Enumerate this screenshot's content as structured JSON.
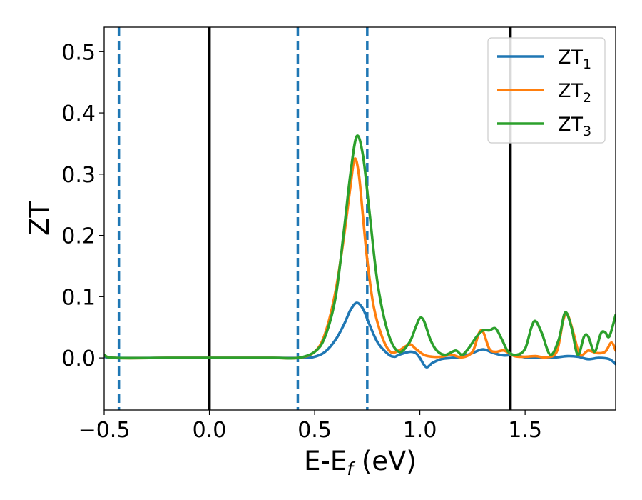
{
  "chart_data": {
    "type": "line",
    "xlabel_main": "E-E",
    "xlabel_sub": "f",
    "xlabel_tail": " (eV)",
    "ylabel": "ZT",
    "xlim": [
      -0.5,
      1.93
    ],
    "ylim": [
      -0.085,
      0.54
    ],
    "xticks": [
      -0.5,
      0.0,
      0.5,
      1.0,
      1.5
    ],
    "xtick_labels": [
      "−0.5",
      "0.0",
      "0.5",
      "1.0",
      "1.5"
    ],
    "yticks": [
      0.0,
      0.1,
      0.2,
      0.3,
      0.4,
      0.5
    ],
    "ytick_labels": [
      "0.0",
      "0.1",
      "0.2",
      "0.3",
      "0.4",
      "0.5"
    ],
    "legend_position": "top-right",
    "grid": false,
    "vlines": [
      {
        "x": -0.43,
        "style": "dashed",
        "color": "#1f77b4"
      },
      {
        "x": 0.0,
        "style": "solid",
        "color": "#000000"
      },
      {
        "x": 0.42,
        "style": "dashed",
        "color": "#1f77b4"
      },
      {
        "x": 0.75,
        "style": "dashed",
        "color": "#1f77b4"
      },
      {
        "x": 1.43,
        "style": "solid",
        "color": "#000000"
      }
    ],
    "series": [
      {
        "name": "ZT",
        "sub": "1",
        "color": "#1f77b4",
        "x": [
          -0.5,
          -0.45,
          -0.2,
          0.0,
          0.3,
          0.45,
          0.5,
          0.55,
          0.6,
          0.64,
          0.67,
          0.7,
          0.73,
          0.76,
          0.8,
          0.85,
          0.88,
          0.9,
          0.95,
          0.98,
          1.0,
          1.03,
          1.06,
          1.1,
          1.15,
          1.2,
          1.25,
          1.3,
          1.35,
          1.4,
          1.45,
          1.5,
          1.55,
          1.6,
          1.65,
          1.7,
          1.75,
          1.8,
          1.85,
          1.9,
          1.93
        ],
        "y": [
          0.002,
          0.0,
          0.0,
          0.0,
          0.0,
          0.0,
          0.002,
          0.01,
          0.03,
          0.055,
          0.078,
          0.09,
          0.08,
          0.055,
          0.025,
          0.006,
          0.002,
          0.005,
          0.01,
          0.008,
          0.0,
          -0.015,
          -0.008,
          -0.002,
          0.0,
          0.002,
          0.008,
          0.014,
          0.008,
          0.004,
          0.005,
          0.001,
          0.0,
          0.0,
          0.001,
          0.003,
          0.002,
          -0.002,
          0.0,
          -0.002,
          -0.01
        ]
      },
      {
        "name": "ZT",
        "sub": "2",
        "color": "#ff7f0e",
        "x": [
          -0.5,
          -0.45,
          -0.2,
          0.0,
          0.3,
          0.42,
          0.5,
          0.55,
          0.6,
          0.64,
          0.67,
          0.69,
          0.71,
          0.73,
          0.75,
          0.78,
          0.82,
          0.86,
          0.9,
          0.95,
          0.98,
          1.02,
          1.06,
          1.1,
          1.15,
          1.2,
          1.25,
          1.28,
          1.3,
          1.33,
          1.36,
          1.4,
          1.45,
          1.5,
          1.55,
          1.6,
          1.65,
          1.68,
          1.7,
          1.73,
          1.76,
          1.8,
          1.84,
          1.88,
          1.91,
          1.93
        ],
        "y": [
          0.005,
          0.0,
          0.0,
          0.0,
          0.0,
          0.0,
          0.01,
          0.04,
          0.11,
          0.2,
          0.28,
          0.325,
          0.3,
          0.23,
          0.16,
          0.085,
          0.035,
          0.01,
          0.012,
          0.022,
          0.015,
          0.005,
          0.002,
          0.002,
          0.005,
          0.001,
          0.01,
          0.04,
          0.043,
          0.015,
          0.01,
          0.012,
          0.003,
          0.002,
          0.003,
          0.001,
          0.01,
          0.06,
          0.072,
          0.04,
          0.005,
          0.012,
          0.008,
          0.01,
          0.025,
          0.012
        ]
      },
      {
        "name": "ZT",
        "sub": "3",
        "color": "#2ca02c",
        "x": [
          -0.5,
          -0.45,
          -0.2,
          0.0,
          0.3,
          0.42,
          0.5,
          0.55,
          0.6,
          0.64,
          0.67,
          0.7,
          0.73,
          0.76,
          0.8,
          0.85,
          0.9,
          0.95,
          0.98,
          1.0,
          1.02,
          1.05,
          1.08,
          1.12,
          1.17,
          1.2,
          1.23,
          1.27,
          1.3,
          1.33,
          1.36,
          1.39,
          1.42,
          1.46,
          1.5,
          1.53,
          1.55,
          1.58,
          1.62,
          1.66,
          1.69,
          1.72,
          1.75,
          1.78,
          1.8,
          1.83,
          1.86,
          1.88,
          1.9,
          1.93
        ],
        "y": [
          0.005,
          0.0,
          0.0,
          0.0,
          0.0,
          0.0,
          0.01,
          0.035,
          0.1,
          0.21,
          0.3,
          0.362,
          0.33,
          0.24,
          0.12,
          0.04,
          0.01,
          0.025,
          0.05,
          0.065,
          0.06,
          0.03,
          0.012,
          0.005,
          0.012,
          0.005,
          0.015,
          0.035,
          0.045,
          0.045,
          0.048,
          0.03,
          0.01,
          0.005,
          0.015,
          0.05,
          0.06,
          0.04,
          0.005,
          0.03,
          0.074,
          0.05,
          0.005,
          0.035,
          0.035,
          0.01,
          0.04,
          0.042,
          0.035,
          0.07
        ]
      }
    ]
  }
}
